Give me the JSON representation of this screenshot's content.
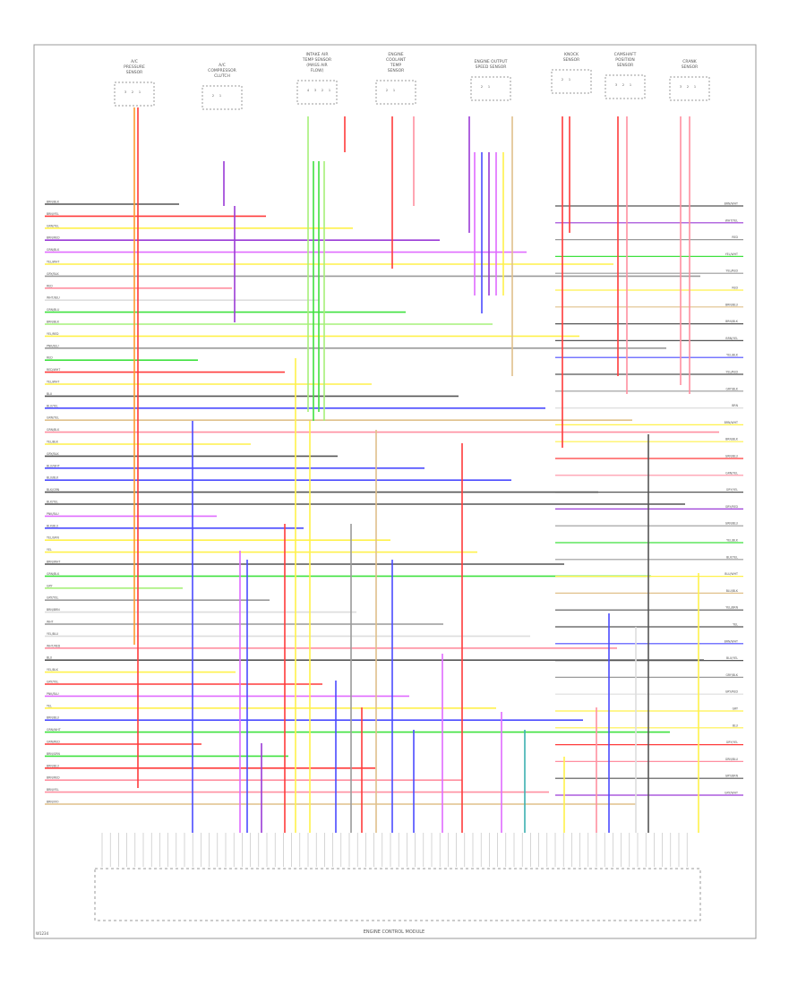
{
  "diagram": {
    "module_label": "ENGINE CONTROL MODULE",
    "footer_code": "W1234",
    "top_components": [
      {
        "lines": [
          "A/C",
          "PRESSURE",
          "SENSOR"
        ],
        "pins": [
          "3",
          "2",
          "1"
        ]
      },
      {
        "lines": [
          "A/C",
          "COMPRESSOR",
          "CLUTCH"
        ],
        "pins": [
          "2",
          "1"
        ]
      },
      {
        "lines": [
          "INTAKE AIR",
          "TEMP SENSOR",
          "(MASS AIR",
          "FLOW)"
        ],
        "pins": [
          "4",
          "3",
          "2",
          "1"
        ]
      },
      {
        "lines": [
          "ENGINE",
          "COOLANT",
          "TEMP",
          "SENSOR"
        ],
        "pins": [
          "2",
          "1"
        ]
      },
      {
        "lines": [
          "ENGINE OUTPUT",
          "SPEED SENSOR"
        ],
        "pins": [
          "2",
          "1"
        ]
      },
      {
        "lines": [
          "KNOCK",
          "SENSOR"
        ],
        "pins": [
          "2",
          "1"
        ]
      },
      {
        "lines": [
          "CAMSHAFT",
          "POSITION",
          "SENSOR"
        ],
        "pins": [
          "3",
          "2",
          "1"
        ]
      },
      {
        "lines": [
          "CRANK",
          "SENSOR"
        ],
        "pins": [
          "3",
          "2",
          "1"
        ]
      }
    ],
    "wire_colors": {
      "red": "#ff3b3b",
      "pink": "#ff8fa0",
      "yellow": "#fff14a",
      "green": "#3fe13f",
      "ltgreen": "#a6f07a",
      "blue": "#4b4bff",
      "purple": "#9a3ad6",
      "violet": "#e06bff",
      "orange": "#ff9a2e",
      "grey": "#9a9a9a",
      "dkgrey": "#555555",
      "tan": "#e0c08a",
      "teal": "#3ab0b0",
      "black": "#333333",
      "white": "#dddddd",
      "cyan": "#5ad9e6"
    },
    "left_labels": [
      "BRN/BLK",
      "BRN/YEL",
      "GRN/YEL",
      "BRN/RED",
      "GRN/BLK",
      "YEL/WHT",
      "GRY/BLK",
      "RED",
      "WHT/BLU",
      "GRN/BLU",
      "BRN/BLK",
      "YEL/RED",
      "PNK/BLU",
      "RED",
      "RED/WHT",
      "YEL/WHT",
      "BLU",
      "BLU/YEL",
      "GRN/YEL",
      "GRN/BLK",
      "YEL/BLK",
      "GRY/BLK",
      "BLU/WHT",
      "BLU/BLK",
      "BLK/GRN",
      "BLK/YEL",
      "PNK/BLU",
      "BLK/BLU",
      "YEL/GRN",
      "YEL",
      "BRN/WHT",
      "GRN/BLK",
      "GRY",
      "GRY/YEL",
      "BRN/BRN",
      "WHT",
      "YEL/BLU",
      "WHT/RED",
      "BLU",
      "YEL/BLK",
      "GRY/YEL",
      "PNK/BLU",
      "YEL",
      "BRN/BLU",
      "GRN/WHT",
      "GRN/RED",
      "BRN/GRN",
      "BRN/BLU",
      "BRN/RED",
      "BRN/YEL",
      "BRN/VIO"
    ],
    "right_labels": [
      "BRN/WHT",
      "WHT/YEL",
      "RED",
      "YEL/WHT",
      "YEL/RED",
      "RED",
      "BRN/BLU",
      "BRN/BLK",
      "BRN/YEL",
      "YEL/BLK",
      "YEL/RED",
      "GRY/BLK",
      "BRN",
      "BRN/WHT",
      "BRN/BLK",
      "GRN/BLU",
      "GRN/YEL",
      "GRY/YEL",
      "GRY/RED",
      "GRN/BLU",
      "YEL/BLK",
      "BLK/YEL",
      "BLU/WHT",
      "BLU/BLK",
      "YEL/BRN",
      "YEL",
      "BRN/WHT",
      "BLU/YEL",
      "GRY/BLK",
      "GRY/RED",
      "GRY",
      "BLU",
      "GRY/YEL",
      "GRN/BLU",
      "GRY/BRN",
      "GRY/WHT"
    ]
  }
}
